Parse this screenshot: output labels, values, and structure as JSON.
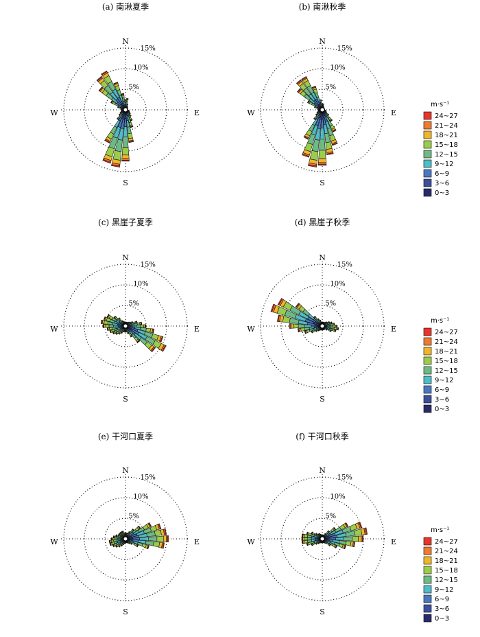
{
  "figure": {
    "direction_labels": [
      "N",
      "E",
      "S",
      "W"
    ],
    "ring_labels": [
      "5%",
      "10%",
      "15%"
    ],
    "legend": {
      "unit": "m·s⁻¹",
      "bins": [
        "24~27",
        "21~24",
        "18~21",
        "15~18",
        "12~15",
        "9~12",
        "6~9",
        "3~6",
        "0~3"
      ],
      "colors": [
        "#e8352a",
        "#f07a30",
        "#f0b62a",
        "#9ccd4a",
        "#6dbb84",
        "#4fbcc8",
        "#4a78c0",
        "#3d4e9c",
        "#2a2a6a"
      ]
    }
  },
  "chart_data": [
    {
      "type": "windrose",
      "title": "(a) 南湫夏季",
      "rlim": [
        0,
        15
      ],
      "rings": [
        5,
        10,
        15
      ],
      "directions_deg": [
        0,
        10,
        20,
        30,
        40,
        50,
        60,
        70,
        80,
        90,
        100,
        110,
        120,
        130,
        140,
        150,
        160,
        170,
        180,
        190,
        200,
        210,
        220,
        230,
        240,
        250,
        260,
        270,
        280,
        290,
        300,
        310,
        320,
        330,
        340,
        350
      ],
      "totals_pct": [
        2.5,
        2.8,
        1.5,
        1,
        0.8,
        0.6,
        0.6,
        0.6,
        0.6,
        0.6,
        0.8,
        1,
        1.2,
        1.5,
        2,
        3,
        4.5,
        8,
        12.5,
        14,
        13.5,
        9,
        3,
        2,
        1.5,
        1.2,
        1,
        1,
        1.2,
        2,
        4,
        8,
        10,
        10.5,
        7,
        4
      ]
    },
    {
      "type": "windrose",
      "title": "(b) 南湫秋季",
      "rlim": [
        0,
        15
      ],
      "rings": [
        5,
        10,
        15
      ],
      "directions_deg": [
        0,
        10,
        20,
        30,
        40,
        50,
        60,
        70,
        80,
        90,
        100,
        110,
        120,
        130,
        140,
        150,
        160,
        170,
        180,
        190,
        200,
        210,
        220,
        230,
        240,
        250,
        260,
        270,
        280,
        290,
        300,
        310,
        320,
        330,
        340,
        350
      ],
      "totals_pct": [
        1.5,
        1.5,
        1,
        0.7,
        0.6,
        0.6,
        0.6,
        0.6,
        0.6,
        0.6,
        0.8,
        1,
        1.2,
        2,
        3.5,
        6,
        9,
        11,
        13.5,
        14,
        12,
        8,
        3,
        2,
        1.5,
        1.2,
        1,
        1,
        1.2,
        2,
        4,
        7.5,
        9,
        9,
        6,
        2.5
      ]
    },
    {
      "type": "windrose",
      "title": "(c) 黑崖子夏季",
      "rlim": [
        0,
        15
      ],
      "rings": [
        5,
        10,
        15
      ],
      "directions_deg": [
        0,
        10,
        20,
        30,
        40,
        50,
        60,
        70,
        80,
        90,
        100,
        110,
        120,
        130,
        140,
        150,
        160,
        170,
        180,
        190,
        200,
        210,
        220,
        230,
        240,
        250,
        260,
        270,
        280,
        290,
        300,
        310,
        320,
        330,
        340,
        350
      ],
      "totals_pct": [
        1,
        1,
        1,
        1,
        1.2,
        1.5,
        2,
        3,
        4,
        5,
        7,
        9.5,
        11,
        9,
        5,
        3,
        2,
        1.5,
        1.5,
        1.5,
        1.5,
        2,
        2.5,
        3,
        3.5,
        4,
        4.5,
        5.5,
        6,
        5.5,
        5,
        3.5,
        2.5,
        1.5,
        1.2,
        1
      ]
    },
    {
      "type": "windrose",
      "title": "(d) 黑崖子秋季",
      "rlim": [
        0,
        15
      ],
      "rings": [
        5,
        10,
        15
      ],
      "directions_deg": [
        0,
        10,
        20,
        30,
        40,
        50,
        60,
        70,
        80,
        90,
        100,
        110,
        120,
        130,
        140,
        150,
        160,
        170,
        180,
        190,
        200,
        210,
        220,
        230,
        240,
        250,
        260,
        270,
        280,
        290,
        300,
        310,
        320,
        330,
        340,
        350
      ],
      "totals_pct": [
        1,
        1,
        1,
        1,
        1.2,
        1.5,
        2,
        2.5,
        3,
        3.5,
        4,
        3.5,
        2.5,
        1.5,
        1,
        1,
        1,
        1,
        1,
        1,
        1,
        1.2,
        1.5,
        2,
        3,
        4.5,
        6,
        8,
        11,
        13,
        12,
        8,
        3,
        2,
        1.5,
        1
      ]
    },
    {
      "type": "windrose",
      "title": "(e) 干河口夏季",
      "rlim": [
        0,
        15
      ],
      "rings": [
        5,
        10,
        15
      ],
      "directions_deg": [
        0,
        10,
        20,
        30,
        40,
        50,
        60,
        70,
        80,
        90,
        100,
        110,
        120,
        130,
        140,
        150,
        160,
        170,
        180,
        190,
        200,
        210,
        220,
        230,
        240,
        250,
        260,
        270,
        280,
        290,
        300,
        310,
        320,
        330,
        340,
        350
      ],
      "totals_pct": [
        1.5,
        1.5,
        1.5,
        2,
        3,
        4.5,
        7,
        9,
        10,
        10.5,
        9.5,
        6,
        3.5,
        2,
        1.5,
        1.2,
        1,
        1,
        1,
        1.2,
        1.5,
        2,
        2.5,
        3,
        3.5,
        4,
        4,
        3.5,
        3,
        2.5,
        2,
        2,
        2,
        2,
        2,
        1.5
      ]
    },
    {
      "type": "windrose",
      "title": "(f) 干河口秋季",
      "rlim": [
        0,
        15
      ],
      "rings": [
        5,
        10,
        15
      ],
      "directions_deg": [
        0,
        10,
        20,
        30,
        40,
        50,
        60,
        70,
        80,
        90,
        100,
        110,
        120,
        130,
        140,
        150,
        160,
        170,
        180,
        190,
        200,
        210,
        220,
        230,
        240,
        250,
        260,
        270,
        280,
        290,
        300,
        310,
        320,
        330,
        340,
        350
      ],
      "totals_pct": [
        1,
        1,
        1,
        1.5,
        2.5,
        4,
        7,
        10,
        11,
        10,
        8,
        6,
        4,
        2.5,
        1.5,
        1.2,
        1,
        1,
        1,
        1,
        1,
        1.2,
        1.5,
        2,
        3,
        4,
        5,
        5,
        5,
        4,
        3,
        2,
        1.5,
        1.5,
        1.2,
        1
      ]
    }
  ]
}
